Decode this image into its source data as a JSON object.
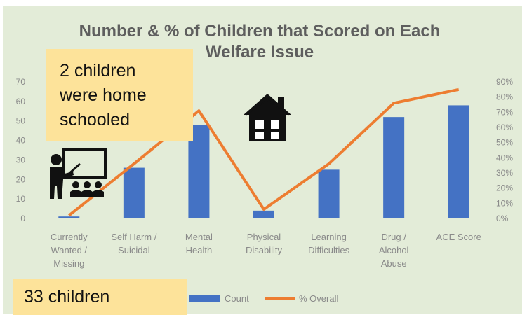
{
  "chart_data": {
    "type": "bar",
    "title": [
      "Number & % of Children that Scored on Each",
      "Welfare Issue"
    ],
    "categories": [
      [
        "Currently",
        "Wanted /",
        "Missing"
      ],
      [
        "Self Harm /",
        "Suicidal"
      ],
      [
        "Mental",
        "Health"
      ],
      [
        "Physical",
        "Disability"
      ],
      [
        "Learning",
        "Difficulties"
      ],
      [
        "Drug /",
        "Alcohol",
        "Abuse"
      ],
      [
        "ACE Score"
      ]
    ],
    "series": [
      {
        "name": "Count",
        "type": "bar",
        "axis": "left",
        "color": "#4472c4",
        "values": [
          1,
          26,
          48,
          4,
          25,
          52,
          58
        ]
      },
      {
        "name": "% Overall",
        "type": "line",
        "axis": "right",
        "color": "#ed7d31",
        "values": [
          2,
          36,
          71,
          6,
          36,
          76,
          85
        ]
      }
    ],
    "y_left": {
      "ylim": [
        0,
        70
      ],
      "ticks": [
        "0",
        "10",
        "20",
        "30",
        "40",
        "50",
        "60",
        "70"
      ]
    },
    "y_right": {
      "ylim": [
        0,
        90
      ],
      "ticks": [
        "0%",
        "10%",
        "20%",
        "30%",
        "40%",
        "50%",
        "60%",
        "70%",
        "80%",
        "90%"
      ]
    },
    "grid": false,
    "legend": "bottom",
    "background": "#e3ecd8"
  },
  "annotations": {
    "home_note": [
      "2 children",
      "were home",
      "schooled"
    ],
    "count_note": "33 children",
    "note_color": "#fde39a"
  },
  "icons": [
    "house-icon",
    "teacher-icon"
  ]
}
